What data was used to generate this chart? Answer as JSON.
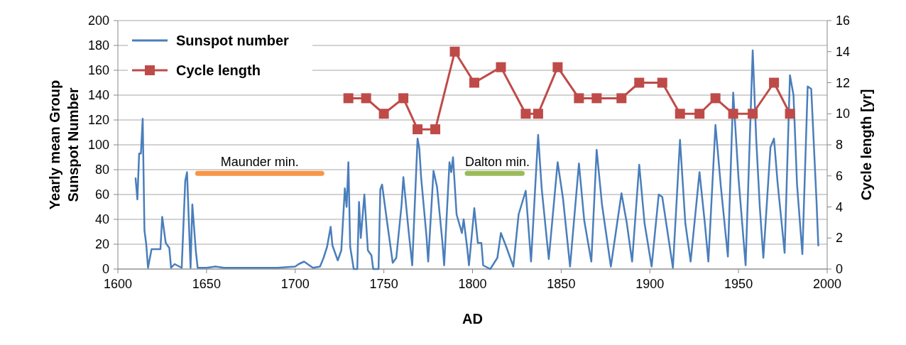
{
  "chart_data": {
    "type": "line",
    "xlabel": "AD",
    "ylabel": "Yearly mean Group  Sunspot Number",
    "y2label": "Cycle length [yr]",
    "xlim": [
      1600,
      2000
    ],
    "xticks": [
      1600,
      1650,
      1700,
      1750,
      1800,
      1850,
      1900,
      1950,
      2000
    ],
    "ylim": [
      0,
      200
    ],
    "yticks": [
      0,
      20,
      40,
      60,
      80,
      100,
      120,
      140,
      160,
      180,
      200
    ],
    "y2lim": [
      0,
      16
    ],
    "y2ticks": [
      0,
      2,
      4,
      6,
      8,
      10,
      12,
      14,
      16
    ],
    "grid": "y",
    "legend": "top left",
    "series": [
      {
        "name": "Sunspot number",
        "color": "#4a7ebb",
        "marker": "none",
        "x": [
          1610,
          1611,
          1612,
          1613,
          1614,
          1615,
          1616,
          1617,
          1619,
          1624,
          1625,
          1627,
          1629,
          1630,
          1632,
          1636,
          1638,
          1639,
          1641,
          1642,
          1644,
          1645,
          1650,
          1655,
          1660,
          1670,
          1680,
          1690,
          1700,
          1702,
          1705,
          1710,
          1714,
          1716,
          1718,
          1720,
          1721,
          1724,
          1726,
          1728,
          1729,
          1730,
          1731,
          1733,
          1735,
          1736,
          1737,
          1739,
          1741,
          1743,
          1744,
          1747,
          1748,
          1749,
          1752,
          1755,
          1757,
          1760,
          1761,
          1764,
          1766,
          1769,
          1770,
          1771,
          1774,
          1775,
          1778,
          1780,
          1783,
          1784,
          1787,
          1788,
          1789,
          1791,
          1794,
          1795,
          1797,
          1798,
          1801,
          1803,
          1805,
          1806,
          1810,
          1814,
          1816,
          1819,
          1823,
          1826,
          1830,
          1833,
          1837,
          1839,
          1843,
          1848,
          1851,
          1855,
          1860,
          1863,
          1867,
          1870,
          1873,
          1878,
          1884,
          1887,
          1890,
          1894,
          1897,
          1901,
          1905,
          1907,
          1913,
          1917,
          1920,
          1923,
          1928,
          1931,
          1933,
          1937,
          1940,
          1944,
          1947,
          1950,
          1954,
          1958,
          1960,
          1962,
          1964,
          1968,
          1970,
          1972,
          1976,
          1979,
          1981,
          1983,
          1986,
          1989,
          1991,
          1994,
          1995
        ],
        "values": [
          73,
          56,
          93,
          93,
          121,
          31,
          20,
          1,
          16,
          16,
          42,
          21,
          17,
          1,
          4,
          1,
          71,
          78,
          1,
          52,
          14,
          1,
          1,
          2,
          1,
          1,
          1,
          1,
          2,
          4,
          6,
          1,
          2,
          9,
          18,
          34,
          19,
          7,
          15,
          65,
          50,
          86,
          18,
          0,
          0,
          54,
          25,
          60,
          15,
          11,
          0,
          0,
          64,
          68,
          36,
          5,
          9,
          52,
          74,
          30,
          3,
          105,
          97,
          74,
          27,
          6,
          79,
          66,
          22,
          3,
          86,
          78,
          90,
          44,
          29,
          40,
          17,
          3,
          49,
          21,
          21,
          3,
          0,
          9,
          29,
          18,
          2,
          44,
          63,
          6,
          108,
          65,
          8,
          86,
          57,
          2,
          85,
          39,
          6,
          96,
          52,
          2,
          61,
          37,
          6,
          84,
          37,
          2,
          60,
          58,
          1,
          104,
          37,
          6,
          78,
          37,
          6,
          116,
          67,
          10,
          142,
          73,
          3,
          176,
          104,
          50,
          9,
          98,
          105,
          70,
          13,
          156,
          140,
          68,
          12,
          147,
          145,
          54,
          19
        ]
      },
      {
        "name": "Cycle length",
        "color": "#be4b48",
        "marker": "square",
        "axis": "y2",
        "x": [
          1730,
          1740,
          1750,
          1761,
          1769,
          1779,
          1790,
          1801,
          1816,
          1830,
          1837,
          1848,
          1860,
          1870,
          1884,
          1894,
          1907,
          1917,
          1928,
          1937,
          1947,
          1958,
          1970,
          1979
        ],
        "values": [
          11,
          11,
          10,
          11,
          9,
          9,
          14,
          12,
          13,
          10,
          10,
          13,
          11,
          11,
          11,
          12,
          12,
          10,
          10,
          11,
          10,
          10,
          12,
          10
        ]
      },
      {
        "color": "#f79646",
        "marker": "none",
        "x": [
          1645,
          1715
        ],
        "values": [
          77,
          77
        ]
      },
      {
        "color": "#9bbb59",
        "marker": "none",
        "x": [
          1797,
          1828
        ],
        "values": [
          77,
          77
        ]
      }
    ],
    "annotations": [
      {
        "text": "Maunder min.",
        "x": 1680,
        "y": 77
      },
      {
        "text": "Dalton min.",
        "x": 1814,
        "y": 77
      }
    ]
  }
}
